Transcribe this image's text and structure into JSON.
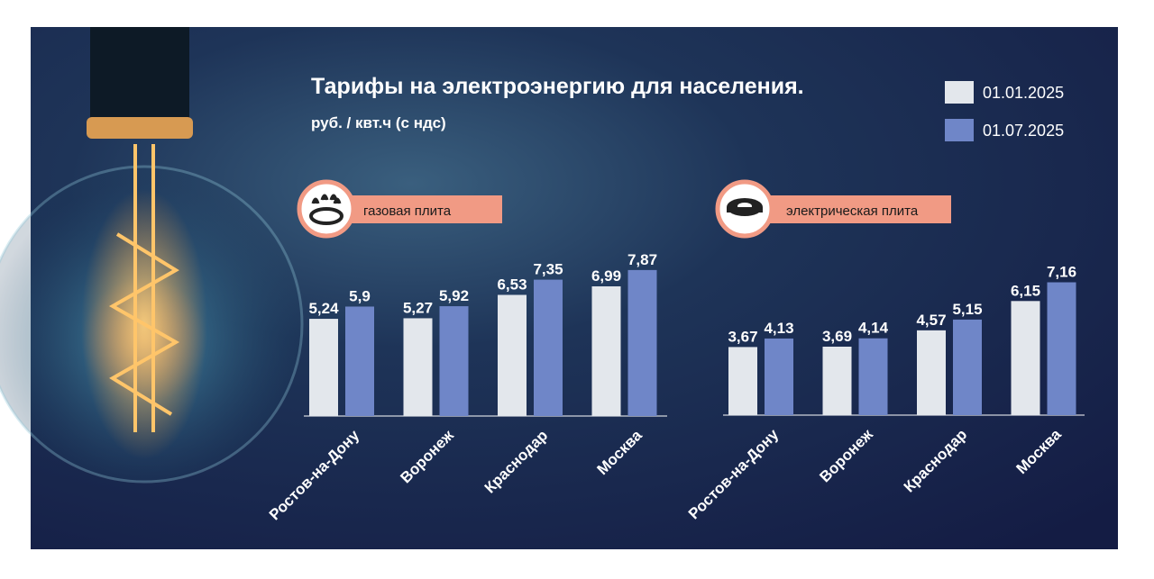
{
  "chart_data": [
    {
      "type": "bar",
      "title": "Тарифы на электроэнергию для населения.",
      "subtitle": "руб. / квт.ч (с ндс)",
      "label": "газовая плита",
      "categories": [
        "Ростов-на-Дону",
        "Воронеж",
        "Краснодар",
        "Москва"
      ],
      "series": [
        {
          "name": "01.01.2025",
          "color": "#e3e7ec",
          "values": [
            5.24,
            5.27,
            6.53,
            6.99
          ],
          "value_labels": [
            "5,24",
            "5,27",
            "6,53",
            "6,99"
          ]
        },
        {
          "name": "01.07.2025",
          "color": "#6f86c8",
          "values": [
            5.9,
            5.92,
            7.35,
            7.87
          ],
          "value_labels": [
            "5,9",
            "5,92",
            "7,35",
            "7,87"
          ]
        }
      ]
    },
    {
      "type": "bar",
      "label": "электрическая плита",
      "categories": [
        "Ростов-на-Дону",
        "Воронеж",
        "Краснодар",
        "Москва"
      ],
      "series": [
        {
          "color": "#e3e7ec",
          "values": [
            3.67,
            3.69,
            4.57,
            6.15
          ],
          "value_labels": [
            "3,67",
            "3,69",
            "4,57",
            "6,15"
          ]
        },
        {
          "color": "#6f86c8",
          "values": [
            4.13,
            4.14,
            5.15,
            7.16
          ],
          "value_labels": [
            "4,13",
            "4,14",
            "5,15",
            "7,16"
          ]
        }
      ]
    }
  ]
}
